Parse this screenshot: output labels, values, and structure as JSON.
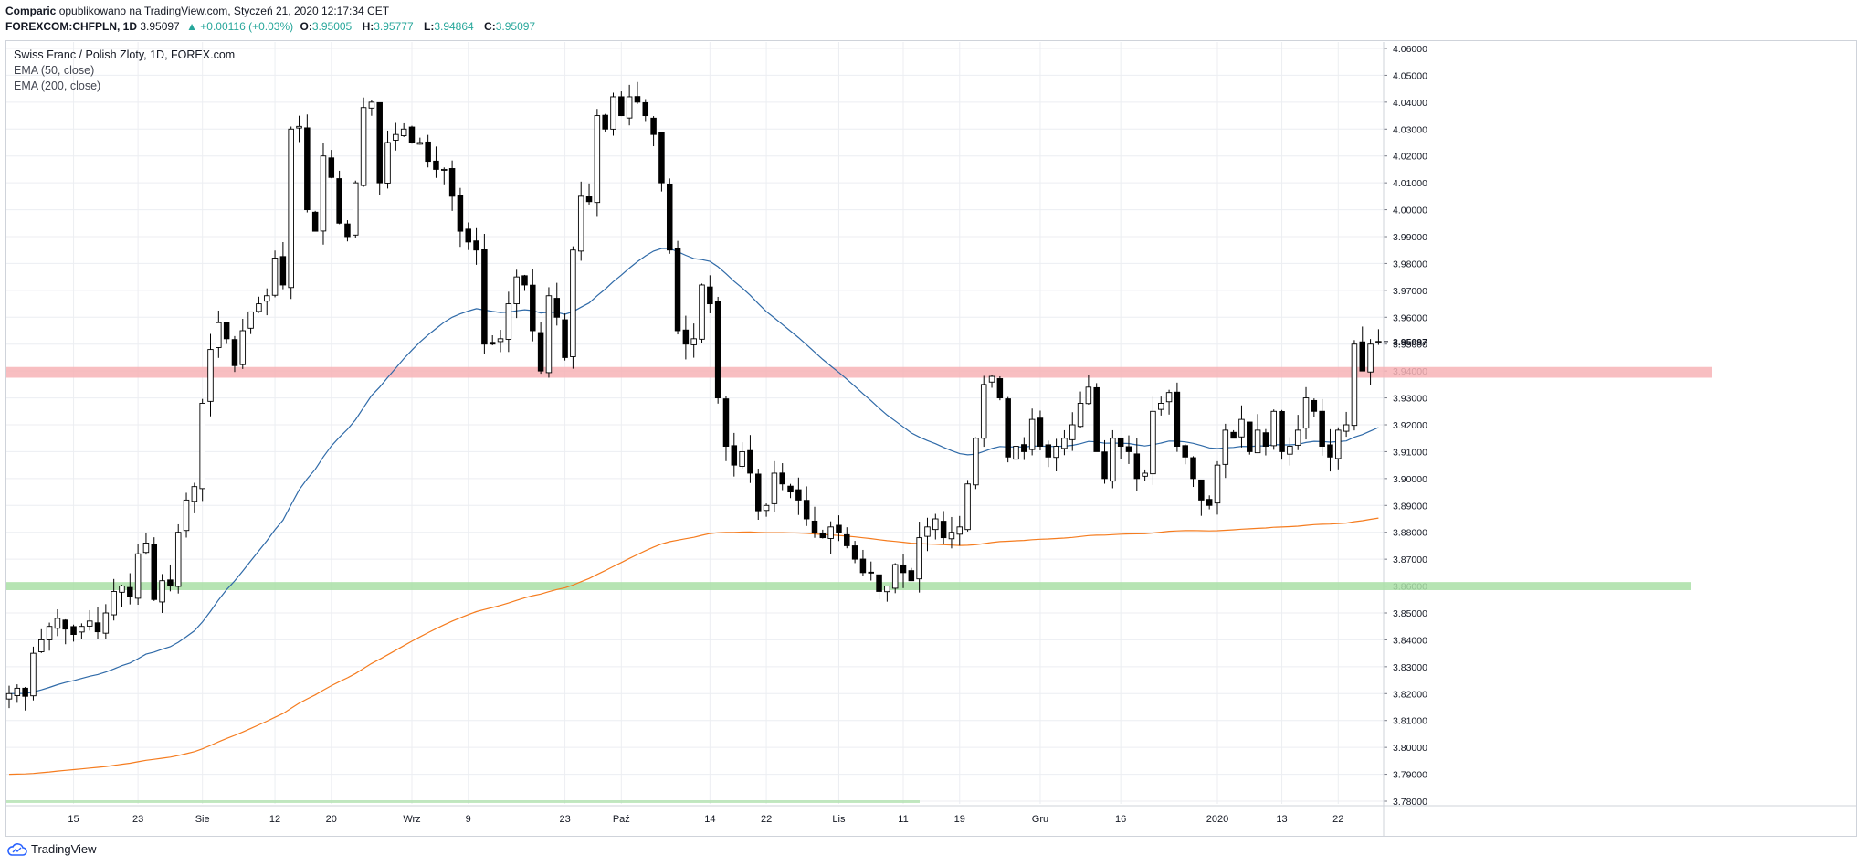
{
  "header": {
    "author": "Comparic",
    "published": "opublikowano na TradingView.com, Styczeń 21, 2020 12:17:34 CET",
    "symbol": "FOREXCOM:CHFPLN, 1D",
    "last": "3.95097",
    "change": "▲ +0.00116 (+0.03%)",
    "o_label": "O:",
    "o": "3.95005",
    "h_label": "H:",
    "h": "3.95777",
    "l_label": "L:",
    "l": "3.94864",
    "c_label": "C:",
    "c": "3.95097"
  },
  "legend": {
    "title": "Swiss Franc / Polish Zloty, 1D, FOREX.com",
    "ema50": "EMA (50, close)",
    "ema200": "EMA (200, close)"
  },
  "footer": {
    "brand": "TradingView"
  },
  "colors": {
    "ema50": "#2f6aa8",
    "ema200": "#f57c1f",
    "resistance": "#f7b3b6",
    "support": "#a9dfa6",
    "grid": "#eceef2",
    "candle_up": "#ffffff",
    "candle_down": "#000000"
  },
  "chart_data": {
    "type": "candlestick",
    "title": "Swiss Franc / Polish Zloty, 1D, FOREX.com",
    "ylim": [
      3.78,
      4.065
    ],
    "yticks": [
      "4.06000",
      "4.05000",
      "4.04000",
      "4.03000",
      "4.02000",
      "4.01000",
      "4.00000",
      "3.99000",
      "3.98000",
      "3.97000",
      "3.96000",
      "3.95000",
      "3.94000",
      "3.93000",
      "3.92000",
      "3.91000",
      "3.90000",
      "3.89000",
      "3.88000",
      "3.87000",
      "3.86000",
      "3.85000",
      "3.84000",
      "3.83000",
      "3.82000",
      "3.81000",
      "3.80000",
      "3.79000",
      "3.78000"
    ],
    "xticks": [
      {
        "label": "15",
        "i": 8
      },
      {
        "label": "23",
        "i": 16
      },
      {
        "label": "Sie",
        "i": 24
      },
      {
        "label": "12",
        "i": 33
      },
      {
        "label": "20",
        "i": 40
      },
      {
        "label": "Wrz",
        "i": 50
      },
      {
        "label": "9",
        "i": 57
      },
      {
        "label": "23",
        "i": 69
      },
      {
        "label": "Paź",
        "i": 76
      },
      {
        "label": "14",
        "i": 87
      },
      {
        "label": "22",
        "i": 94
      },
      {
        "label": "Lis",
        "i": 103
      },
      {
        "label": "11",
        "i": 111
      },
      {
        "label": "19",
        "i": 118
      },
      {
        "label": "Gru",
        "i": 128
      },
      {
        "label": "16",
        "i": 138
      },
      {
        "label": "2020",
        "i": 150
      },
      {
        "label": "13",
        "i": 158
      },
      {
        "label": "22",
        "i": 165
      }
    ],
    "last_price_label": "3.95097",
    "resistance_zone": [
      3.9375,
      3.9415
    ],
    "support_zone": [
      3.8585,
      3.8615
    ],
    "closes": [
      3.82,
      3.822,
      3.819,
      3.835,
      3.84,
      3.845,
      3.848,
      3.844,
      3.842,
      3.845,
      3.847,
      3.843,
      3.85,
      3.858,
      3.86,
      3.856,
      3.872,
      3.876,
      3.855,
      3.862,
      3.86,
      3.88,
      3.892,
      3.897,
      3.928,
      3.948,
      3.958,
      3.952,
      3.942,
      3.955,
      3.962,
      3.965,
      3.968,
      3.982,
      3.972,
      4.03,
      4.031,
      4.0,
      3.992,
      4.02,
      4.012,
      3.995,
      3.99,
      4.01,
      4.038,
      4.04,
      4.01,
      4.025,
      4.028,
      4.03,
      4.025,
      4.025,
      4.018,
      4.015,
      4.015,
      4.005,
      3.992,
      3.988,
      3.985,
      3.95,
      3.95,
      3.952,
      3.965,
      3.975,
      3.972,
      3.955,
      3.94,
      3.968,
      3.96,
      3.945,
      3.985,
      4.005,
      4.003,
      4.035,
      4.03,
      4.042,
      4.035,
      4.042,
      4.04,
      4.035,
      4.028,
      4.01,
      3.985,
      3.955,
      3.95,
      3.952,
      3.972,
      3.965,
      3.93,
      3.912,
      3.905,
      3.91,
      3.902,
      3.888,
      3.89,
      3.902,
      3.898,
      3.895,
      3.892,
      3.885,
      3.88,
      3.878,
      3.882,
      3.88,
      3.875,
      3.87,
      3.865,
      3.865,
      3.858,
      3.86,
      3.868,
      3.865,
      3.862,
      3.878,
      3.882,
      3.885,
      3.878,
      3.88,
      3.882,
      3.898,
      3.915,
      3.935,
      3.938,
      3.93,
      3.908,
      3.912,
      3.91,
      3.922,
      3.912,
      3.908,
      3.912,
      3.915,
      3.92,
      3.928,
      3.934,
      3.91,
      3.9,
      3.915,
      3.912,
      3.91,
      3.9,
      3.902,
      3.925,
      3.928,
      3.932,
      3.912,
      3.908,
      3.9,
      3.892,
      3.89,
      3.905,
      3.918,
      3.915,
      3.922,
      3.91,
      3.918,
      3.912,
      3.925,
      3.91,
      3.912,
      3.918,
      3.93,
      3.925,
      3.912,
      3.908,
      3.918,
      3.92,
      3.95,
      3.94,
      3.95,
      3.951
    ]
  }
}
